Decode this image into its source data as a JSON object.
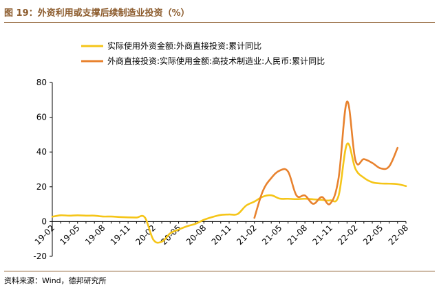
{
  "header": {
    "title": "图 19：外资利用或支撑后续制造业投资（%）"
  },
  "footer": {
    "source": "资料来源：Wind，德邦研究所"
  },
  "colors": {
    "series1": "#f5c518",
    "series2": "#e8822e",
    "accent": "#8b5a2b"
  },
  "chart_data": {
    "type": "line",
    "title": "",
    "xlabel": "",
    "ylabel": "",
    "ylim": [
      -20,
      80
    ],
    "yticks": [
      -20,
      0,
      20,
      40,
      60,
      80
    ],
    "grid": false,
    "legend_position": "top",
    "x": [
      "19-02",
      "19-03",
      "19-04",
      "19-05",
      "19-06",
      "19-07",
      "19-08",
      "19-09",
      "19-10",
      "19-11",
      "19-12",
      "20-01",
      "20-02",
      "20-03",
      "20-04",
      "20-05",
      "20-06",
      "20-07",
      "20-08",
      "20-09",
      "20-10",
      "20-11",
      "20-12",
      "21-01",
      "21-02",
      "21-03",
      "21-04",
      "21-05",
      "21-06",
      "21-07",
      "21-08",
      "21-09",
      "21-10",
      "21-11",
      "21-12",
      "22-01",
      "22-02",
      "22-03",
      "22-04",
      "22-05",
      "22-06",
      "22-07",
      "22-08"
    ],
    "xtick_labels": [
      "19-02",
      "19-05",
      "19-08",
      "19-11",
      "20-02",
      "20-05",
      "20-08",
      "20-11",
      "21-02",
      "21-05",
      "21-08",
      "21-11",
      "22-02",
      "22-05",
      "22-08"
    ],
    "series": [
      {
        "name": "实际使用外资金额:外商直接投资:累计同比",
        "values": [
          2.8,
          3.6,
          3.4,
          3.6,
          3.4,
          3.4,
          2.9,
          2.9,
          2.6,
          2.4,
          2.3,
          2.3,
          -10.4,
          -11.6,
          -6.8,
          -4.6,
          -2.7,
          -1.3,
          1.0,
          2.6,
          3.8,
          4.1,
          4.3,
          9.1,
          11.5,
          14.3,
          15.1,
          13.2,
          13.1,
          12.9,
          13.1,
          12.8,
          12.5,
          12.2,
          14.9,
          44.6,
          30.3,
          25.2,
          22.6,
          21.9,
          21.8,
          21.5,
          20.4
        ]
      },
      {
        "name": "外商直接投资:实际使用金额:高技术制造业:人民币:累计同比",
        "values": [
          null,
          null,
          null,
          null,
          null,
          null,
          null,
          null,
          null,
          null,
          null,
          null,
          null,
          null,
          null,
          null,
          null,
          null,
          null,
          null,
          null,
          null,
          null,
          null,
          2.1,
          17.5,
          25.0,
          29.3,
          28.7,
          15.0,
          15.0,
          10.2,
          14.1,
          10.3,
          25.1,
          69.0,
          35.2,
          35.9,
          33.7,
          30.6,
          31.7,
          42.4,
          null
        ]
      }
    ]
  }
}
